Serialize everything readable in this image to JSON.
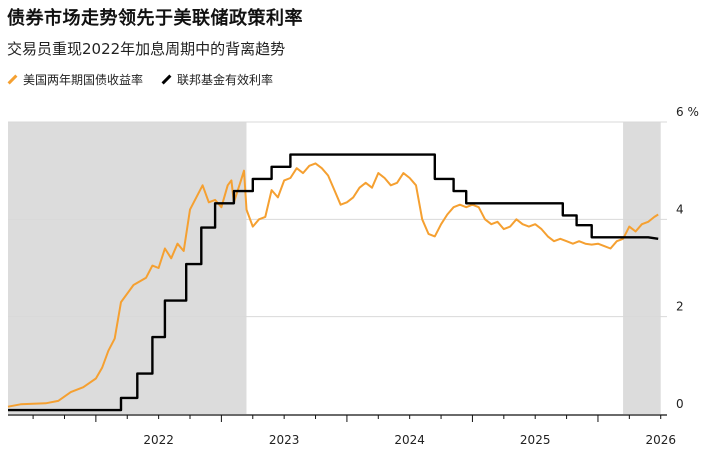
{
  "title": "债券市场走势领先于美联储政策利率",
  "subtitle": "交易员重现2022年加息周期中的背离趋势",
  "legend": [
    {
      "label": "美国两年期国债收益率",
      "color": "#f5a031"
    },
    {
      "label": "联邦基金有效利率",
      "color": "#000000"
    }
  ],
  "colors": {
    "yield": "#f5a031",
    "fed": "#000000",
    "shade": "#dcdcdc",
    "grid": "#d9d9d9"
  },
  "chart_data": {
    "type": "line",
    "title": "债券市场走势领先于美联储政策利率",
    "subtitle": "交易员重现2022年加息周期中的背离趋势",
    "ylim": [
      0,
      6
    ],
    "xlim": [
      2021.3,
      2026.55
    ],
    "y_ticks": [
      {
        "value": 0,
        "label": "0"
      },
      {
        "value": 2,
        "label": "2"
      },
      {
        "value": 4,
        "label": "4"
      },
      {
        "value": 6,
        "label": "6 %"
      }
    ],
    "x_ticks": [
      {
        "value": 2022.0,
        "label": "2022"
      },
      {
        "value": 2023.0,
        "label": "2023"
      },
      {
        "value": 2024.0,
        "label": "2024"
      },
      {
        "value": 2025.0,
        "label": "2025"
      },
      {
        "value": 2026.0,
        "label": "2026"
      }
    ],
    "shaded_periods": [
      [
        2021.3,
        2023.2
      ],
      [
        2026.2,
        2026.5
      ]
    ],
    "grid": true,
    "legend_position": "top-left",
    "series": [
      {
        "name": "美国两年期国债收益率",
        "color": "#f5a031",
        "points": [
          [
            2021.3,
            0.15
          ],
          [
            2021.4,
            0.2
          ],
          [
            2021.5,
            0.21
          ],
          [
            2021.6,
            0.22
          ],
          [
            2021.7,
            0.27
          ],
          [
            2021.8,
            0.45
          ],
          [
            2021.9,
            0.55
          ],
          [
            2022.0,
            0.73
          ],
          [
            2022.05,
            0.95
          ],
          [
            2022.1,
            1.3
          ],
          [
            2022.15,
            1.55
          ],
          [
            2022.2,
            2.3
          ],
          [
            2022.3,
            2.65
          ],
          [
            2022.4,
            2.8
          ],
          [
            2022.45,
            3.05
          ],
          [
            2022.5,
            3.0
          ],
          [
            2022.55,
            3.4
          ],
          [
            2022.6,
            3.2
          ],
          [
            2022.65,
            3.5
          ],
          [
            2022.7,
            3.35
          ],
          [
            2022.75,
            4.2
          ],
          [
            2022.8,
            4.45
          ],
          [
            2022.85,
            4.7
          ],
          [
            2022.9,
            4.35
          ],
          [
            2022.95,
            4.4
          ],
          [
            2023.0,
            4.25
          ],
          [
            2023.05,
            4.7
          ],
          [
            2023.08,
            4.8
          ],
          [
            2023.1,
            4.35
          ],
          [
            2023.15,
            4.75
          ],
          [
            2023.18,
            5.0
          ],
          [
            2023.2,
            4.2
          ],
          [
            2023.25,
            3.85
          ],
          [
            2023.3,
            4.0
          ],
          [
            2023.35,
            4.05
          ],
          [
            2023.4,
            4.6
          ],
          [
            2023.45,
            4.45
          ],
          [
            2023.5,
            4.8
          ],
          [
            2023.55,
            4.85
          ],
          [
            2023.6,
            5.05
          ],
          [
            2023.65,
            4.95
          ],
          [
            2023.7,
            5.1
          ],
          [
            2023.75,
            5.15
          ],
          [
            2023.8,
            5.05
          ],
          [
            2023.85,
            4.9
          ],
          [
            2023.9,
            4.6
          ],
          [
            2023.95,
            4.3
          ],
          [
            2024.0,
            4.35
          ],
          [
            2024.05,
            4.45
          ],
          [
            2024.1,
            4.65
          ],
          [
            2024.15,
            4.75
          ],
          [
            2024.2,
            4.65
          ],
          [
            2024.25,
            4.95
          ],
          [
            2024.3,
            4.85
          ],
          [
            2024.35,
            4.7
          ],
          [
            2024.4,
            4.75
          ],
          [
            2024.45,
            4.95
          ],
          [
            2024.5,
            4.85
          ],
          [
            2024.55,
            4.7
          ],
          [
            2024.6,
            4.0
          ],
          [
            2024.65,
            3.7
          ],
          [
            2024.7,
            3.65
          ],
          [
            2024.75,
            3.9
          ],
          [
            2024.8,
            4.1
          ],
          [
            2024.85,
            4.25
          ],
          [
            2024.9,
            4.3
          ],
          [
            2024.95,
            4.25
          ],
          [
            2025.0,
            4.3
          ],
          [
            2025.05,
            4.25
          ],
          [
            2025.1,
            4.0
          ],
          [
            2025.15,
            3.9
          ],
          [
            2025.2,
            3.95
          ],
          [
            2025.25,
            3.8
          ],
          [
            2025.3,
            3.85
          ],
          [
            2025.35,
            4.0
          ],
          [
            2025.4,
            3.9
          ],
          [
            2025.45,
            3.85
          ],
          [
            2025.5,
            3.9
          ],
          [
            2025.55,
            3.8
          ],
          [
            2025.6,
            3.65
          ],
          [
            2025.65,
            3.55
          ],
          [
            2025.7,
            3.6
          ],
          [
            2025.75,
            3.55
          ],
          [
            2025.8,
            3.5
          ],
          [
            2025.85,
            3.55
          ],
          [
            2025.9,
            3.5
          ],
          [
            2025.95,
            3.48
          ],
          [
            2026.0,
            3.5
          ],
          [
            2026.05,
            3.45
          ],
          [
            2026.1,
            3.4
          ],
          [
            2026.15,
            3.55
          ],
          [
            2026.2,
            3.6
          ],
          [
            2026.25,
            3.85
          ],
          [
            2026.3,
            3.75
          ],
          [
            2026.35,
            3.9
          ],
          [
            2026.4,
            3.95
          ],
          [
            2026.45,
            4.05
          ],
          [
            2026.48,
            4.1
          ]
        ]
      },
      {
        "name": "联邦基金有效利率",
        "color": "#000000",
        "points": [
          [
            2021.3,
            0.08
          ],
          [
            2022.2,
            0.08
          ],
          [
            2022.2,
            0.33
          ],
          [
            2022.33,
            0.33
          ],
          [
            2022.33,
            0.83
          ],
          [
            2022.45,
            0.83
          ],
          [
            2022.45,
            1.58
          ],
          [
            2022.55,
            1.58
          ],
          [
            2022.55,
            2.33
          ],
          [
            2022.72,
            2.33
          ],
          [
            2022.72,
            3.08
          ],
          [
            2022.84,
            3.08
          ],
          [
            2022.84,
            3.83
          ],
          [
            2022.95,
            3.83
          ],
          [
            2022.95,
            4.33
          ],
          [
            2023.1,
            4.33
          ],
          [
            2023.1,
            4.58
          ],
          [
            2023.25,
            4.58
          ],
          [
            2023.25,
            4.83
          ],
          [
            2023.4,
            4.83
          ],
          [
            2023.4,
            5.08
          ],
          [
            2023.55,
            5.08
          ],
          [
            2023.55,
            5.33
          ],
          [
            2024.7,
            5.33
          ],
          [
            2024.7,
            4.83
          ],
          [
            2024.85,
            4.83
          ],
          [
            2024.85,
            4.58
          ],
          [
            2024.95,
            4.58
          ],
          [
            2024.95,
            4.33
          ],
          [
            2025.72,
            4.33
          ],
          [
            2025.72,
            4.08
          ],
          [
            2025.83,
            4.08
          ],
          [
            2025.83,
            3.88
          ],
          [
            2025.95,
            3.88
          ],
          [
            2025.95,
            3.63
          ],
          [
            2026.4,
            3.63
          ],
          [
            2026.48,
            3.6
          ]
        ]
      }
    ]
  }
}
